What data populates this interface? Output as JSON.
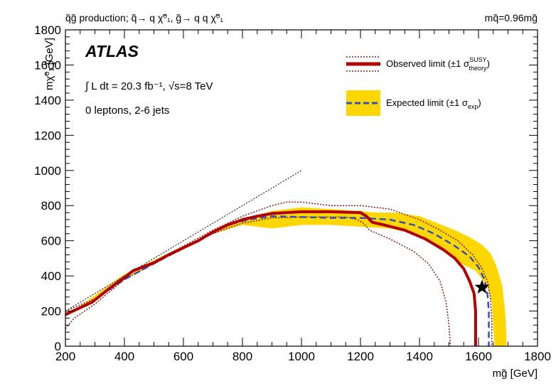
{
  "chart_data": {
    "type": "line",
    "header": {
      "left": "q̃g̃ production; q̃→ q χ̃⁰₁, g̃→ q q χ̃⁰₁",
      "right": "mq̃=0.96mg̃"
    },
    "experiment": "ATLAS",
    "luminosity_label": "∫ L dt = 20.3 fb⁻¹,  √s=8 TeV",
    "selection_label": "0 leptons, 2-6 jets",
    "xlabel": "mg̃ [GeV]",
    "ylabel": "mχ̃⁰₁ [GeV]",
    "xlim": [
      200,
      1800
    ],
    "ylim": [
      0,
      1800
    ],
    "x_ticks": [
      "200",
      "400",
      "600",
      "800",
      "1000",
      "1200",
      "1400",
      "1600",
      "1800"
    ],
    "y_ticks": [
      "0",
      "200",
      "400",
      "600",
      "800",
      "1000",
      "1200",
      "1400",
      "1600",
      "1800"
    ],
    "legend": {
      "placement": "top-right",
      "observed_label": "Observed limit (±1 σ",
      "observed_sup": "SUSY",
      "observed_sub": "theory",
      "observed_close": ")",
      "expected_label": "Expected limit (±1 σ",
      "expected_sub": "exp",
      "expected_close": ")"
    },
    "colors": {
      "observed": "#b20000",
      "observed_band": "#8b1a1a",
      "expected": "#3050c8",
      "expected_band": "#ffd700",
      "diagonal": "#000000",
      "marker": "#000000"
    },
    "series": [
      {
        "id": "expected_band",
        "points": [
          [
            200,
            190
          ],
          [
            300,
            260
          ],
          [
            400,
            380
          ],
          [
            500,
            470
          ],
          [
            560,
            520
          ],
          [
            650,
            610
          ],
          [
            750,
            690
          ],
          [
            820,
            730
          ],
          [
            900,
            770
          ],
          [
            1000,
            790
          ],
          [
            1100,
            780
          ],
          [
            1200,
            770
          ],
          [
            1250,
            760
          ],
          [
            1320,
            760
          ],
          [
            1400,
            740
          ],
          [
            1460,
            700
          ],
          [
            1520,
            660
          ],
          [
            1570,
            620
          ],
          [
            1610,
            580
          ],
          [
            1640,
            530
          ],
          [
            1660,
            460
          ],
          [
            1680,
            350
          ],
          [
            1690,
            200
          ],
          [
            1695,
            50
          ],
          [
            1695,
            0
          ],
          [
            1655,
            0
          ],
          [
            1650,
            100
          ],
          [
            1645,
            250
          ],
          [
            1630,
            340
          ],
          [
            1590,
            430
          ],
          [
            1540,
            470
          ],
          [
            1500,
            520
          ],
          [
            1450,
            570
          ],
          [
            1380,
            640
          ],
          [
            1300,
            670
          ],
          [
            1200,
            680
          ],
          [
            1100,
            690
          ],
          [
            1000,
            690
          ],
          [
            900,
            670
          ],
          [
            800,
            690
          ],
          [
            700,
            640
          ],
          [
            600,
            570
          ],
          [
            500,
            490
          ],
          [
            400,
            410
          ],
          [
            300,
            290
          ],
          [
            200,
            170
          ]
        ]
      },
      {
        "id": "expected",
        "points": [
          [
            200,
            180
          ],
          [
            290,
            255
          ],
          [
            400,
            380
          ],
          [
            500,
            470
          ],
          [
            550,
            515
          ],
          [
            650,
            600
          ],
          [
            750,
            690
          ],
          [
            820,
            720
          ],
          [
            900,
            740
          ],
          [
            1000,
            735
          ],
          [
            1100,
            730
          ],
          [
            1200,
            730
          ],
          [
            1300,
            720
          ],
          [
            1380,
            690
          ],
          [
            1450,
            640
          ],
          [
            1520,
            570
          ],
          [
            1570,
            510
          ],
          [
            1600,
            450
          ],
          [
            1620,
            380
          ],
          [
            1630,
            300
          ],
          [
            1635,
            200
          ],
          [
            1635,
            0
          ]
        ]
      },
      {
        "id": "observed",
        "points": [
          [
            200,
            180
          ],
          [
            290,
            250
          ],
          [
            350,
            330
          ],
          [
            400,
            390
          ],
          [
            430,
            430
          ],
          [
            500,
            475
          ],
          [
            550,
            520
          ],
          [
            650,
            600
          ],
          [
            700,
            650
          ],
          [
            750,
            690
          ],
          [
            800,
            720
          ],
          [
            850,
            740
          ],
          [
            900,
            755
          ],
          [
            1000,
            765
          ],
          [
            1100,
            765
          ],
          [
            1200,
            760
          ],
          [
            1220,
            740
          ],
          [
            1240,
            705
          ],
          [
            1280,
            690
          ],
          [
            1350,
            660
          ],
          [
            1420,
            610
          ],
          [
            1480,
            550
          ],
          [
            1520,
            500
          ],
          [
            1550,
            440
          ],
          [
            1570,
            370
          ],
          [
            1585,
            300
          ],
          [
            1590,
            200
          ],
          [
            1590,
            100
          ],
          [
            1590,
            0
          ]
        ]
      },
      {
        "id": "observed_plus",
        "points": [
          [
            200,
            200
          ],
          [
            300,
            270
          ],
          [
            400,
            400
          ],
          [
            500,
            480
          ],
          [
            600,
            570
          ],
          [
            700,
            660
          ],
          [
            800,
            740
          ],
          [
            900,
            800
          ],
          [
            950,
            820
          ],
          [
            1000,
            820
          ],
          [
            1100,
            800
          ],
          [
            1200,
            800
          ],
          [
            1300,
            780
          ],
          [
            1400,
            720
          ],
          [
            1470,
            660
          ],
          [
            1530,
            600
          ],
          [
            1580,
            520
          ],
          [
            1610,
            450
          ],
          [
            1630,
            370
          ],
          [
            1640,
            280
          ],
          [
            1645,
            150
          ],
          [
            1645,
            0
          ]
        ]
      },
      {
        "id": "observed_minus",
        "points": [
          [
            200,
            100
          ],
          [
            230,
            160
          ],
          [
            300,
            240
          ],
          [
            400,
            380
          ],
          [
            500,
            470
          ],
          [
            600,
            560
          ],
          [
            700,
            640
          ],
          [
            800,
            700
          ],
          [
            900,
            730
          ],
          [
            1000,
            735
          ],
          [
            1100,
            735
          ],
          [
            1150,
            735
          ],
          [
            1190,
            720
          ],
          [
            1210,
            700
          ],
          [
            1230,
            660
          ],
          [
            1300,
            610
          ],
          [
            1380,
            540
          ],
          [
            1430,
            470
          ],
          [
            1470,
            370
          ],
          [
            1490,
            250
          ],
          [
            1500,
            120
          ],
          [
            1505,
            0
          ]
        ]
      },
      {
        "id": "diagonal",
        "points": [
          [
            200,
            200
          ],
          [
            1000,
            1000
          ]
        ]
      }
    ],
    "marker_point": [
      1612,
      335
    ]
  }
}
